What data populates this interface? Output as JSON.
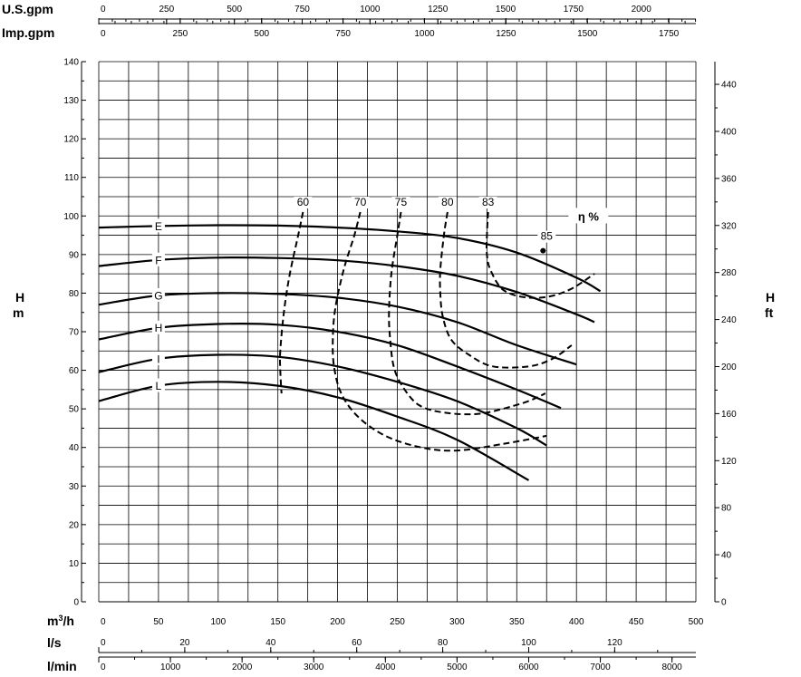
{
  "chart_data": {
    "type": "line",
    "x_axis": {
      "label": "m³/h",
      "ticks": [
        "0",
        "50",
        "100",
        "150",
        "200",
        "250",
        "300",
        "350",
        "400",
        "450",
        "500"
      ],
      "range": [
        0,
        500
      ]
    },
    "y_axis_left": {
      "label_line1": "H",
      "label_line2": "m",
      "ticks": [
        "0",
        "10",
        "20",
        "30",
        "40",
        "50",
        "60",
        "70",
        "80",
        "90",
        "100",
        "110",
        "120",
        "130",
        "140"
      ],
      "range": [
        0,
        140
      ]
    },
    "y_axis_right": {
      "label_line1": "H",
      "label_line2": "ft",
      "ticks": [
        "0",
        "40",
        "80",
        "120",
        "160",
        "200",
        "240",
        "280",
        "320",
        "360",
        "400",
        "440"
      ]
    },
    "top_axis_usgpm": {
      "label": "U.S.gpm",
      "ticks": [
        "0",
        "250",
        "500",
        "750",
        "1000",
        "1250",
        "1500",
        "1750",
        "2000"
      ]
    },
    "top_axis_impgpm": {
      "label": "Imp.gpm",
      "ticks": [
        "0",
        "250",
        "500",
        "750",
        "1000",
        "1250",
        "1500",
        "1750"
      ]
    },
    "bottom_axis_ls": {
      "label": "l/s",
      "ticks": [
        "0",
        "20",
        "40",
        "60",
        "80",
        "100",
        "120"
      ]
    },
    "bottom_axis_lmin": {
      "label": "l/min",
      "ticks": [
        "0",
        "1000",
        "2000",
        "3000",
        "4000",
        "5000",
        "6000",
        "7000",
        "8000"
      ]
    },
    "eta_label": "η %",
    "series": [
      {
        "name": "E",
        "x": [
          0,
          50,
          100,
          150,
          200,
          250,
          300,
          350,
          400,
          420
        ],
        "y": [
          97,
          97.4,
          97.6,
          97.5,
          97,
          96,
          94.3,
          90.5,
          84,
          80.5
        ]
      },
      {
        "name": "F",
        "x": [
          0,
          50,
          100,
          150,
          200,
          250,
          300,
          350,
          400,
          415
        ],
        "y": [
          87,
          88.6,
          89.2,
          89.1,
          88.5,
          87,
          84.5,
          80.3,
          74.5,
          72.5
        ]
      },
      {
        "name": "G",
        "x": [
          0,
          50,
          100,
          150,
          200,
          250,
          300,
          350,
          400
        ],
        "y": [
          77,
          79.4,
          80,
          79.8,
          78.8,
          76.5,
          72.5,
          66.5,
          61.5
        ]
      },
      {
        "name": "H",
        "x": [
          0,
          50,
          100,
          150,
          200,
          250,
          300,
          350,
          387
        ],
        "y": [
          68,
          71,
          72,
          71.8,
          70,
          66.5,
          61,
          55,
          50.2
        ]
      },
      {
        "name": "I",
        "x": [
          0,
          50,
          100,
          150,
          200,
          250,
          300,
          350,
          375
        ],
        "y": [
          59.5,
          63,
          64,
          63.5,
          61,
          57,
          52,
          45,
          40.5
        ]
      },
      {
        "name": "L",
        "x": [
          0,
          50,
          100,
          150,
          200,
          250,
          300,
          360
        ],
        "y": [
          52,
          56,
          57,
          56,
          53,
          48,
          42,
          31.5
        ]
      }
    ],
    "efficiency_curves": [
      {
        "name": "60",
        "x": [
          171,
          167,
          160,
          155,
          152,
          152,
          153
        ],
        "y": [
          101,
          95,
          85,
          75,
          65,
          60,
          54
        ]
      },
      {
        "name": "70",
        "x": [
          219,
          214,
          205,
          198,
          196,
          197,
          203,
          217,
          240,
          270,
          300,
          340,
          375
        ],
        "y": [
          101,
          95,
          86,
          76,
          68,
          61,
          54,
          48,
          43,
          40,
          39.2,
          41,
          43
        ]
      },
      {
        "name": "75",
        "x": [
          253,
          250,
          245,
          243,
          244,
          247,
          254,
          268,
          290,
          320,
          355,
          374
        ],
        "y": [
          101,
          95,
          85,
          75,
          68,
          61,
          56,
          51,
          49,
          48.8,
          51.5,
          54
        ]
      },
      {
        "name": "80",
        "x": [
          292,
          289,
          286,
          286,
          288,
          295,
          310,
          330,
          360,
          380,
          396
        ],
        "y": [
          101,
          95,
          86,
          80,
          74,
          68,
          64,
          61,
          61,
          63,
          66.5
        ]
      },
      {
        "name": "83",
        "x": [
          326,
          325,
          325,
          328,
          338,
          355,
          375,
          395,
          415
        ],
        "y": [
          101,
          95,
          90,
          86,
          81,
          79,
          79,
          81,
          85
        ]
      },
      {
        "name": "85",
        "x": [
          372
        ],
        "y": [
          91
        ]
      }
    ]
  }
}
